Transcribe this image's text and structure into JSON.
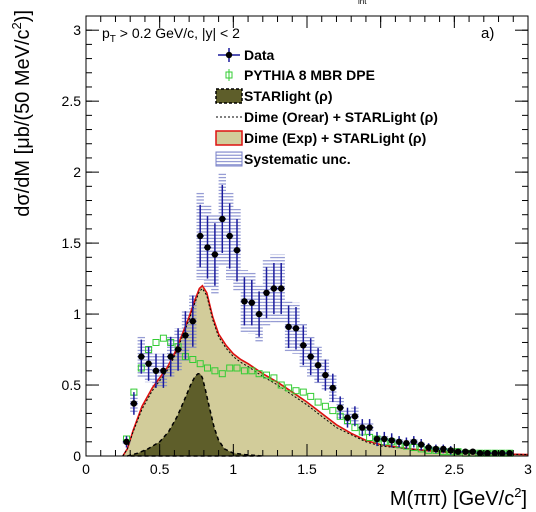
{
  "chart_data": {
    "type": "scatter",
    "title": "",
    "top_clipped_text": "int",
    "panel_label": "a)",
    "cut_label": {
      "main": "p",
      "sub": "T",
      "rest": " > 0.2 GeV/c, |y| < 2"
    },
    "xlabel": {
      "pre": "M(ππ) [GeV/c",
      "sup": "2",
      "post": "]"
    },
    "ylabel": {
      "pre": "dσ/dM [μb/(50 MeV/c",
      "sup": "2",
      "post": ")]"
    },
    "xlim": [
      0,
      3
    ],
    "ylim": [
      0,
      3.1
    ],
    "xticks": [
      "0",
      "0.5",
      "1",
      "1.5",
      "2",
      "2.5",
      "3"
    ],
    "yticks": [
      "0",
      "0.5",
      "1",
      "1.5",
      "2",
      "2.5",
      "3"
    ],
    "grid": false,
    "legend_position": "top-center",
    "legend": [
      {
        "key": "data",
        "label": "Data"
      },
      {
        "key": "pythia",
        "label": "PYTHIA 8 MBR DPE"
      },
      {
        "key": "starlight",
        "label": "STARlight (ρ)"
      },
      {
        "key": "dime_orear",
        "label": "Dime (Orear) + STARLight (ρ)"
      },
      {
        "key": "dime_exp",
        "label": "Dime (Exp) + STARLight (ρ)"
      },
      {
        "key": "syst",
        "label": "Systematic unc."
      }
    ],
    "colors": {
      "data": "#000000",
      "data_error": "#1a1a9c",
      "syst_band": "#7880c8",
      "pythia": "#33cc33",
      "starlight_fill": "#5e5e2a",
      "dime_fill": "#d2cc9a",
      "dime_exp_line": "#dd1111",
      "dime_orear_line": "#000000"
    },
    "series": [
      {
        "name": "Data",
        "x": [
          0.275,
          0.325,
          0.375,
          0.425,
          0.475,
          0.525,
          0.575,
          0.625,
          0.675,
          0.725,
          0.775,
          0.825,
          0.875,
          0.925,
          0.975,
          1.025,
          1.075,
          1.125,
          1.175,
          1.225,
          1.275,
          1.325,
          1.375,
          1.425,
          1.475,
          1.525,
          1.575,
          1.625,
          1.675,
          1.725,
          1.775,
          1.825,
          1.875,
          1.925,
          1.975,
          2.025,
          2.075,
          2.125,
          2.175,
          2.225,
          2.275,
          2.325,
          2.375,
          2.425,
          2.475,
          2.525,
          2.575,
          2.625,
          2.675,
          2.725,
          2.775,
          2.825,
          2.875
        ],
        "y": [
          0.1,
          0.37,
          0.7,
          0.65,
          0.6,
          0.6,
          0.7,
          0.75,
          0.85,
          0.95,
          1.55,
          1.47,
          1.42,
          1.67,
          1.55,
          1.45,
          1.09,
          1.08,
          1.0,
          1.15,
          1.18,
          1.18,
          0.91,
          0.9,
          0.78,
          0.7,
          0.64,
          0.57,
          0.48,
          0.34,
          0.27,
          0.28,
          0.2,
          0.2,
          0.12,
          0.12,
          0.11,
          0.1,
          0.09,
          0.1,
          0.08,
          0.06,
          0.05,
          0.05,
          0.04,
          0.03,
          0.03,
          0.03,
          0.02,
          0.02,
          0.02,
          0.02,
          0.02
        ],
        "yerr": [
          0.04,
          0.08,
          0.12,
          0.12,
          0.12,
          0.12,
          0.14,
          0.15,
          0.17,
          0.18,
          0.22,
          0.22,
          0.22,
          0.24,
          0.23,
          0.22,
          0.17,
          0.16,
          0.16,
          0.18,
          0.18,
          0.18,
          0.15,
          0.15,
          0.14,
          0.13,
          0.12,
          0.11,
          0.1,
          0.08,
          0.07,
          0.07,
          0.06,
          0.06,
          0.05,
          0.05,
          0.05,
          0.04,
          0.04,
          0.04,
          0.04,
          0.03,
          0.03,
          0.03,
          0.03,
          0.02,
          0.02,
          0.02,
          0.02,
          0.02,
          0.02,
          0.02,
          0.02
        ]
      },
      {
        "name": "Systematic unc.",
        "x": [
          0.275,
          0.325,
          0.375,
          0.425,
          0.475,
          0.525,
          0.575,
          0.625,
          0.675,
          0.725,
          0.775,
          0.825,
          0.875,
          0.925,
          0.975,
          1.025,
          1.075,
          1.125,
          1.175,
          1.225,
          1.275,
          1.325,
          1.375,
          1.425,
          1.475,
          1.525,
          1.575,
          1.625,
          1.675,
          1.725,
          1.775,
          1.825,
          1.875,
          1.925,
          1.975,
          2.025,
          2.075,
          2.125,
          2.175,
          2.225,
          2.275,
          2.325,
          2.375,
          2.425,
          2.475,
          2.525,
          2.575,
          2.625,
          2.675,
          2.725,
          2.775,
          2.825,
          2.875
        ],
        "low": [
          0.08,
          0.3,
          0.55,
          0.52,
          0.49,
          0.48,
          0.56,
          0.6,
          0.67,
          0.76,
          1.24,
          1.18,
          1.14,
          1.34,
          1.24,
          1.16,
          0.87,
          0.86,
          0.8,
          0.92,
          0.94,
          0.94,
          0.73,
          0.72,
          0.62,
          0.56,
          0.51,
          0.46,
          0.38,
          0.27,
          0.22,
          0.22,
          0.16,
          0.16,
          0.1,
          0.1,
          0.09,
          0.08,
          0.07,
          0.08,
          0.06,
          0.05,
          0.04,
          0.04,
          0.03,
          0.02,
          0.02,
          0.02,
          0.02,
          0.02,
          0.02,
          0.02,
          0.02
        ],
        "high": [
          0.12,
          0.44,
          0.85,
          0.78,
          0.72,
          0.72,
          0.84,
          0.9,
          1.02,
          1.14,
          1.86,
          1.77,
          1.7,
          2.0,
          1.86,
          1.74,
          1.31,
          1.3,
          1.2,
          1.38,
          1.42,
          1.42,
          1.09,
          1.08,
          0.94,
          0.84,
          0.77,
          0.68,
          0.58,
          0.41,
          0.32,
          0.34,
          0.24,
          0.24,
          0.14,
          0.14,
          0.13,
          0.12,
          0.11,
          0.12,
          0.1,
          0.07,
          0.06,
          0.06,
          0.05,
          0.04,
          0.04,
          0.04,
          0.03,
          0.03,
          0.03,
          0.03,
          0.03
        ]
      },
      {
        "name": "PYTHIA 8 MBR DPE",
        "x": [
          0.275,
          0.325,
          0.375,
          0.425,
          0.475,
          0.525,
          0.575,
          0.625,
          0.675,
          0.725,
          0.775,
          0.825,
          0.875,
          0.925,
          0.975,
          1.025,
          1.075,
          1.125,
          1.175,
          1.225,
          1.275,
          1.325,
          1.375,
          1.425,
          1.475,
          1.525,
          1.575,
          1.625,
          1.675,
          1.725,
          1.775,
          1.825,
          1.875,
          1.925,
          1.975,
          2.025,
          2.075,
          2.125,
          2.175,
          2.225,
          2.275,
          2.325,
          2.375,
          2.425,
          2.475,
          2.525,
          2.575,
          2.625,
          2.675,
          2.725,
          2.775,
          2.825,
          2.875
        ],
        "y": [
          0.12,
          0.45,
          0.62,
          0.75,
          0.8,
          0.83,
          0.8,
          0.77,
          0.7,
          0.68,
          0.65,
          0.62,
          0.6,
          0.58,
          0.62,
          0.62,
          0.6,
          0.6,
          0.58,
          0.57,
          0.55,
          0.5,
          0.48,
          0.46,
          0.45,
          0.42,
          0.38,
          0.35,
          0.32,
          0.28,
          0.25,
          0.2,
          0.17,
          0.13,
          0.12,
          0.1,
          0.1,
          0.08,
          0.07,
          0.06,
          0.05,
          0.04,
          0.04,
          0.03,
          0.03,
          0.03,
          0.02,
          0.02,
          0.02,
          0.02,
          0.02,
          0.02,
          0.02
        ]
      },
      {
        "name": "STARlight (ρ)",
        "x": [
          0.28,
          0.35,
          0.42,
          0.5,
          0.56,
          0.62,
          0.67,
          0.71,
          0.74,
          0.76,
          0.775,
          0.79,
          0.81,
          0.84,
          0.87,
          0.9,
          0.94,
          1.0,
          1.08,
          1.2
        ],
        "y": [
          0.0,
          0.02,
          0.05,
          0.1,
          0.17,
          0.28,
          0.4,
          0.5,
          0.56,
          0.58,
          0.58,
          0.55,
          0.47,
          0.33,
          0.2,
          0.11,
          0.05,
          0.02,
          0.01,
          0.0
        ]
      },
      {
        "name": "Dime (Exp) + STARLight (ρ)",
        "x": [
          0.25,
          0.28,
          0.32,
          0.38,
          0.45,
          0.5,
          0.55,
          0.6,
          0.65,
          0.7,
          0.74,
          0.77,
          0.79,
          0.82,
          0.86,
          0.9,
          0.95,
          1.0,
          1.05,
          1.1,
          1.2,
          1.3,
          1.4,
          1.5,
          1.6,
          1.7,
          1.8,
          1.9,
          2.0,
          2.2,
          2.4,
          2.6,
          2.8,
          3.0
        ],
        "y": [
          0.0,
          0.05,
          0.18,
          0.35,
          0.48,
          0.55,
          0.62,
          0.72,
          0.85,
          0.98,
          1.1,
          1.18,
          1.2,
          1.15,
          0.98,
          0.86,
          0.78,
          0.72,
          0.68,
          0.65,
          0.58,
          0.52,
          0.45,
          0.38,
          0.3,
          0.22,
          0.16,
          0.11,
          0.08,
          0.05,
          0.03,
          0.02,
          0.015,
          0.01
        ]
      },
      {
        "name": "Dime (Orear) + STARLight (ρ)",
        "x": [
          0.25,
          0.28,
          0.32,
          0.38,
          0.45,
          0.5,
          0.55,
          0.6,
          0.65,
          0.7,
          0.74,
          0.77,
          0.79,
          0.82,
          0.86,
          0.9,
          0.95,
          1.0,
          1.05,
          1.1,
          1.2,
          1.3,
          1.4,
          1.5,
          1.6,
          1.7,
          1.8,
          1.9,
          2.0,
          2.2,
          2.4,
          2.6,
          2.8,
          3.0
        ],
        "y": [
          0.0,
          0.05,
          0.17,
          0.33,
          0.46,
          0.53,
          0.6,
          0.7,
          0.83,
          0.96,
          1.08,
          1.16,
          1.18,
          1.13,
          0.96,
          0.84,
          0.76,
          0.7,
          0.66,
          0.63,
          0.56,
          0.5,
          0.43,
          0.36,
          0.28,
          0.2,
          0.15,
          0.1,
          0.07,
          0.05,
          0.03,
          0.02,
          0.015,
          0.01
        ]
      }
    ]
  }
}
